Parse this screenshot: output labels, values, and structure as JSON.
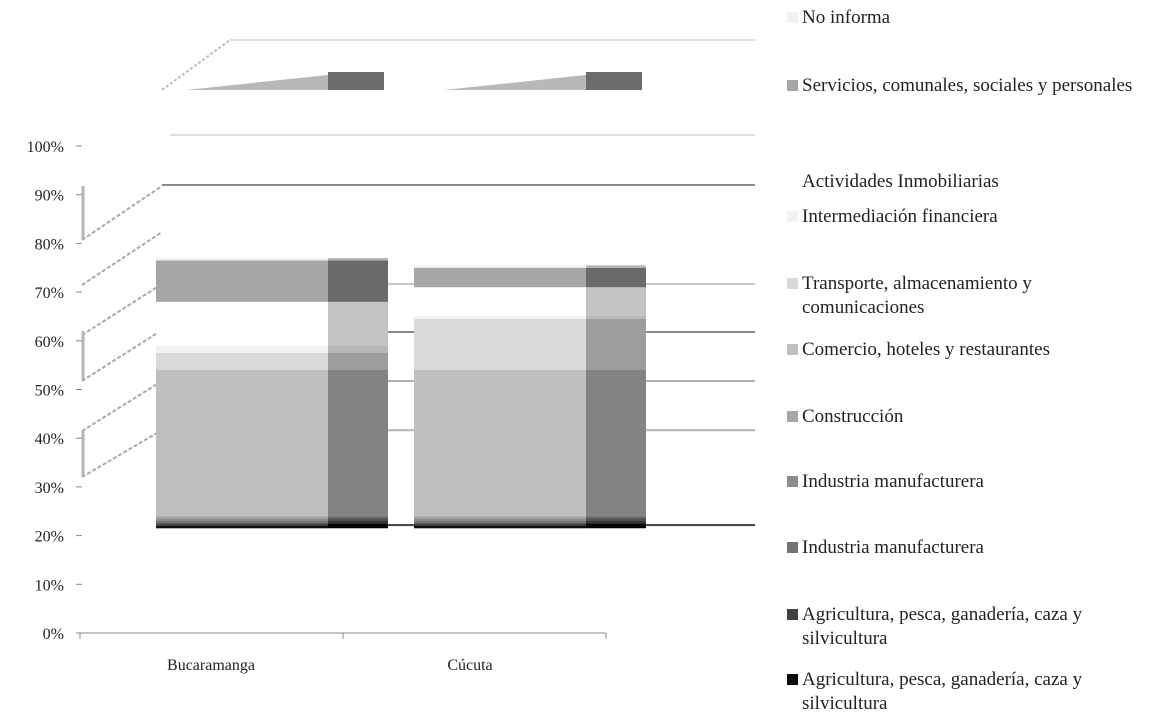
{
  "chart_data": {
    "type": "bar",
    "stacked": true,
    "three_d": true,
    "percent": true,
    "categories": [
      "Bucaramanga",
      "Cúcuta"
    ],
    "y_ticks": [
      "0%",
      "10%",
      "20%",
      "30%",
      "40%",
      "50%",
      "60%",
      "70%",
      "80%",
      "90%",
      "100%"
    ],
    "ylim": [
      0,
      100
    ],
    "legend_position": "right",
    "series": [
      {
        "name": "No informa",
        "color": "#f2f2f2",
        "values": [
          0.5,
          0.5
        ]
      },
      {
        "name": "Servicios, comunales, sociales y personales",
        "color": "#a6a6a6",
        "values": [
          8.5,
          4.0
        ]
      },
      {
        "name": "Actividades Inmobiliarias",
        "color": "#ffffff",
        "values": [
          9.0,
          6.0
        ]
      },
      {
        "name": "Intermediación financiera",
        "color": "#f2f2f2",
        "values": [
          1.5,
          0.5
        ]
      },
      {
        "name": "Transporte, almacenamiento y comunicaciones",
        "color": "#d9d9d9",
        "values": [
          3.5,
          10.5
        ]
      },
      {
        "name": "Comercio, hoteles y restaurantes",
        "color": "#bfbfbf",
        "values": [
          30.0,
          30.0
        ]
      },
      {
        "name": "Construcción",
        "color": "#a6a6a6",
        "values": [
          0.5,
          0.5
        ]
      },
      {
        "name": "Industria manufacturera",
        "color": "#8c8c8c",
        "values": [
          0.5,
          0.5
        ]
      },
      {
        "name": "Industria manufacturera",
        "color": "#737373",
        "values": [
          0.5,
          0.5
        ]
      },
      {
        "name": "Agricultura, pesca, ganadería, caza y silvicultura",
        "color": "#404040",
        "values": [
          0.5,
          0.5
        ]
      },
      {
        "name": "Agricultura, pesca, ganadería, caza y silvicultura",
        "color": "#0d0d0d",
        "values": [
          0.5,
          0.5
        ]
      }
    ]
  }
}
